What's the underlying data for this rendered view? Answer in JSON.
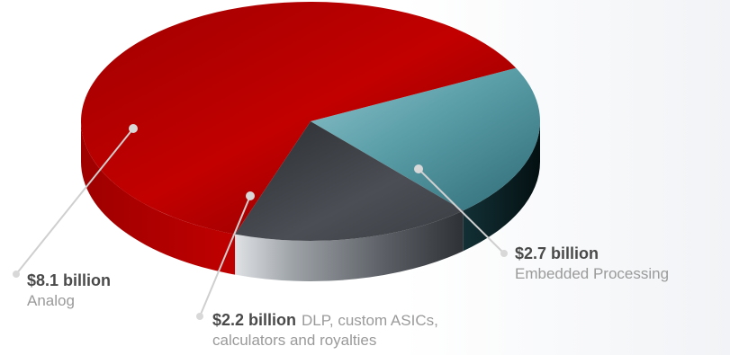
{
  "chart_data": {
    "type": "pie",
    "slices": [
      {
        "value": 8.1,
        "value_label": "$8.1 billion",
        "text_lines": [
          "Analog"
        ],
        "color": "#b30000"
      },
      {
        "value": 2.2,
        "value_label": "$2.2 billion",
        "text_lines": [
          "DLP, custom ASICs,",
          "calculators and royalties"
        ],
        "color": "#3a3d43"
      },
      {
        "value": 2.7,
        "value_label": "$2.7 billion",
        "text_lines": [
          "Embedded Processing"
        ],
        "color": "#4f8f99"
      }
    ],
    "unit": "billion USD"
  }
}
